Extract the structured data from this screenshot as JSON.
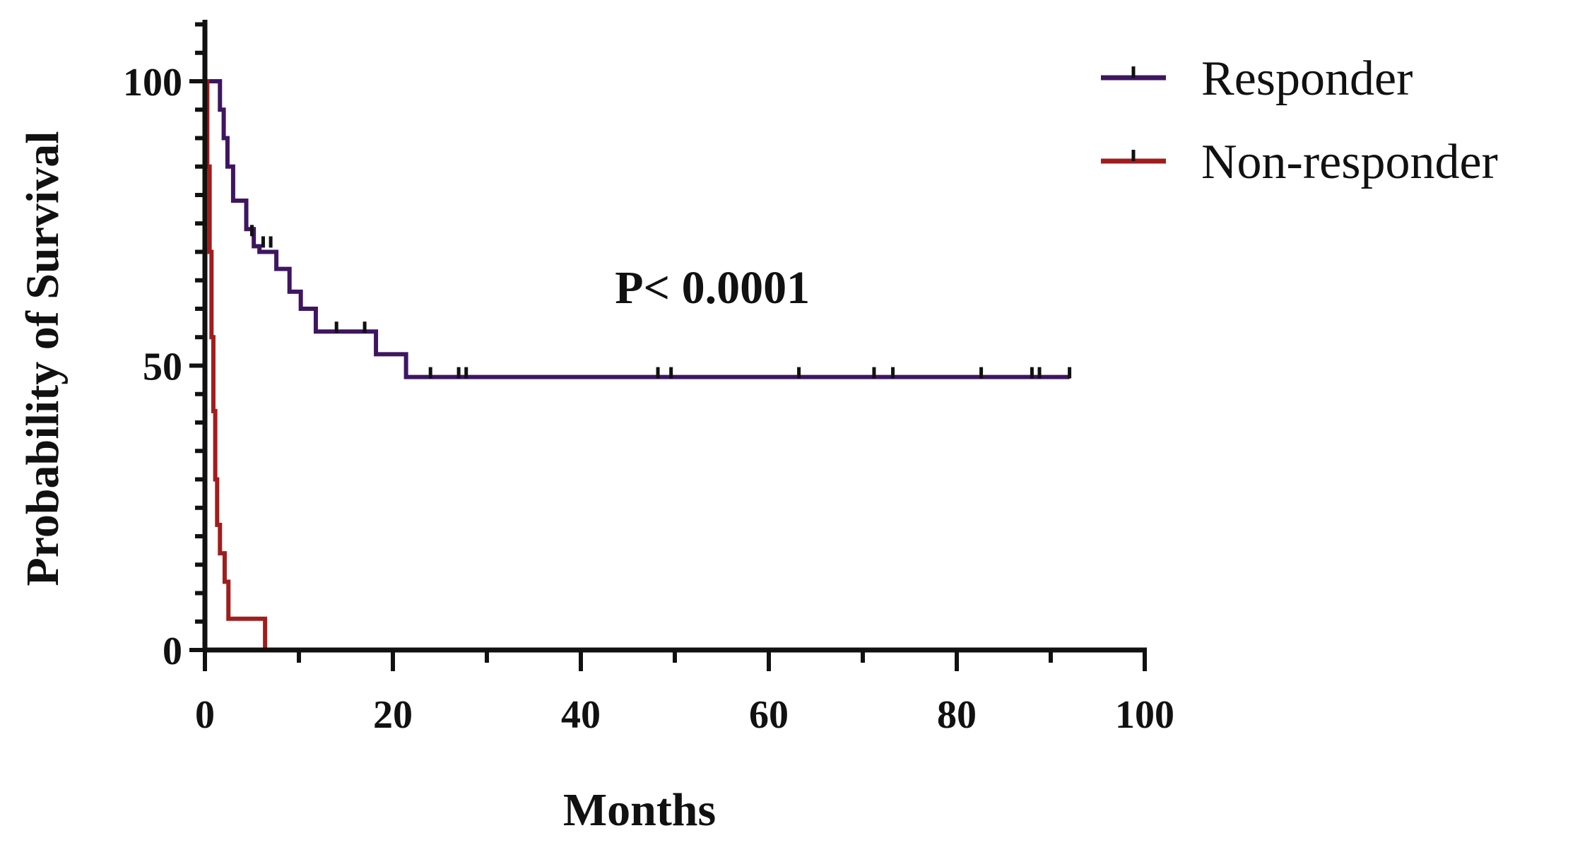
{
  "chart_data": {
    "type": "line",
    "subtype": "kaplan-meier-step",
    "xlabel": "Months",
    "ylabel": "Probability of Survival",
    "xlim": [
      0,
      100
    ],
    "ylim": [
      0,
      100
    ],
    "x_ticks": [
      0,
      20,
      40,
      60,
      80,
      100
    ],
    "y_ticks": [
      0,
      50,
      100
    ],
    "grid": false,
    "legend_position": "top-right",
    "annotation": "P< 0.0001",
    "series": [
      {
        "name": "Responder",
        "color": "#3f1560",
        "steps": [
          [
            0,
            100
          ],
          [
            1.2,
            100
          ],
          [
            1.6,
            95
          ],
          [
            2.0,
            90
          ],
          [
            2.4,
            85
          ],
          [
            3.0,
            79
          ],
          [
            4.4,
            74
          ],
          [
            5.2,
            71
          ],
          [
            5.8,
            70
          ],
          [
            7.6,
            67
          ],
          [
            9.0,
            63
          ],
          [
            10.2,
            60
          ],
          [
            11.8,
            56
          ],
          [
            18.2,
            52
          ],
          [
            21.4,
            48
          ],
          [
            92,
            48
          ]
        ],
        "censored": [
          [
            5.0,
            73
          ],
          [
            6.2,
            71
          ],
          [
            7.0,
            71
          ],
          [
            14.0,
            56
          ],
          [
            17.0,
            56
          ],
          [
            24.0,
            48
          ],
          [
            27.0,
            48
          ],
          [
            27.8,
            48
          ],
          [
            48.2,
            48
          ],
          [
            49.6,
            48
          ],
          [
            63.2,
            48
          ],
          [
            71.2,
            48
          ],
          [
            73.2,
            48
          ],
          [
            82.6,
            48
          ],
          [
            88.0,
            48
          ],
          [
            88.8,
            48
          ],
          [
            92.0,
            48
          ]
        ]
      },
      {
        "name": "Non-responder",
        "color": "#a11d1d",
        "steps": [
          [
            0,
            100
          ],
          [
            0.25,
            85
          ],
          [
            0.5,
            70
          ],
          [
            0.7,
            55
          ],
          [
            0.9,
            42
          ],
          [
            1.1,
            30
          ],
          [
            1.3,
            22
          ],
          [
            1.6,
            17
          ],
          [
            2.1,
            12
          ],
          [
            2.5,
            5.5
          ],
          [
            6.4,
            5.5
          ],
          [
            6.4,
            0
          ]
        ],
        "censored": []
      }
    ]
  }
}
